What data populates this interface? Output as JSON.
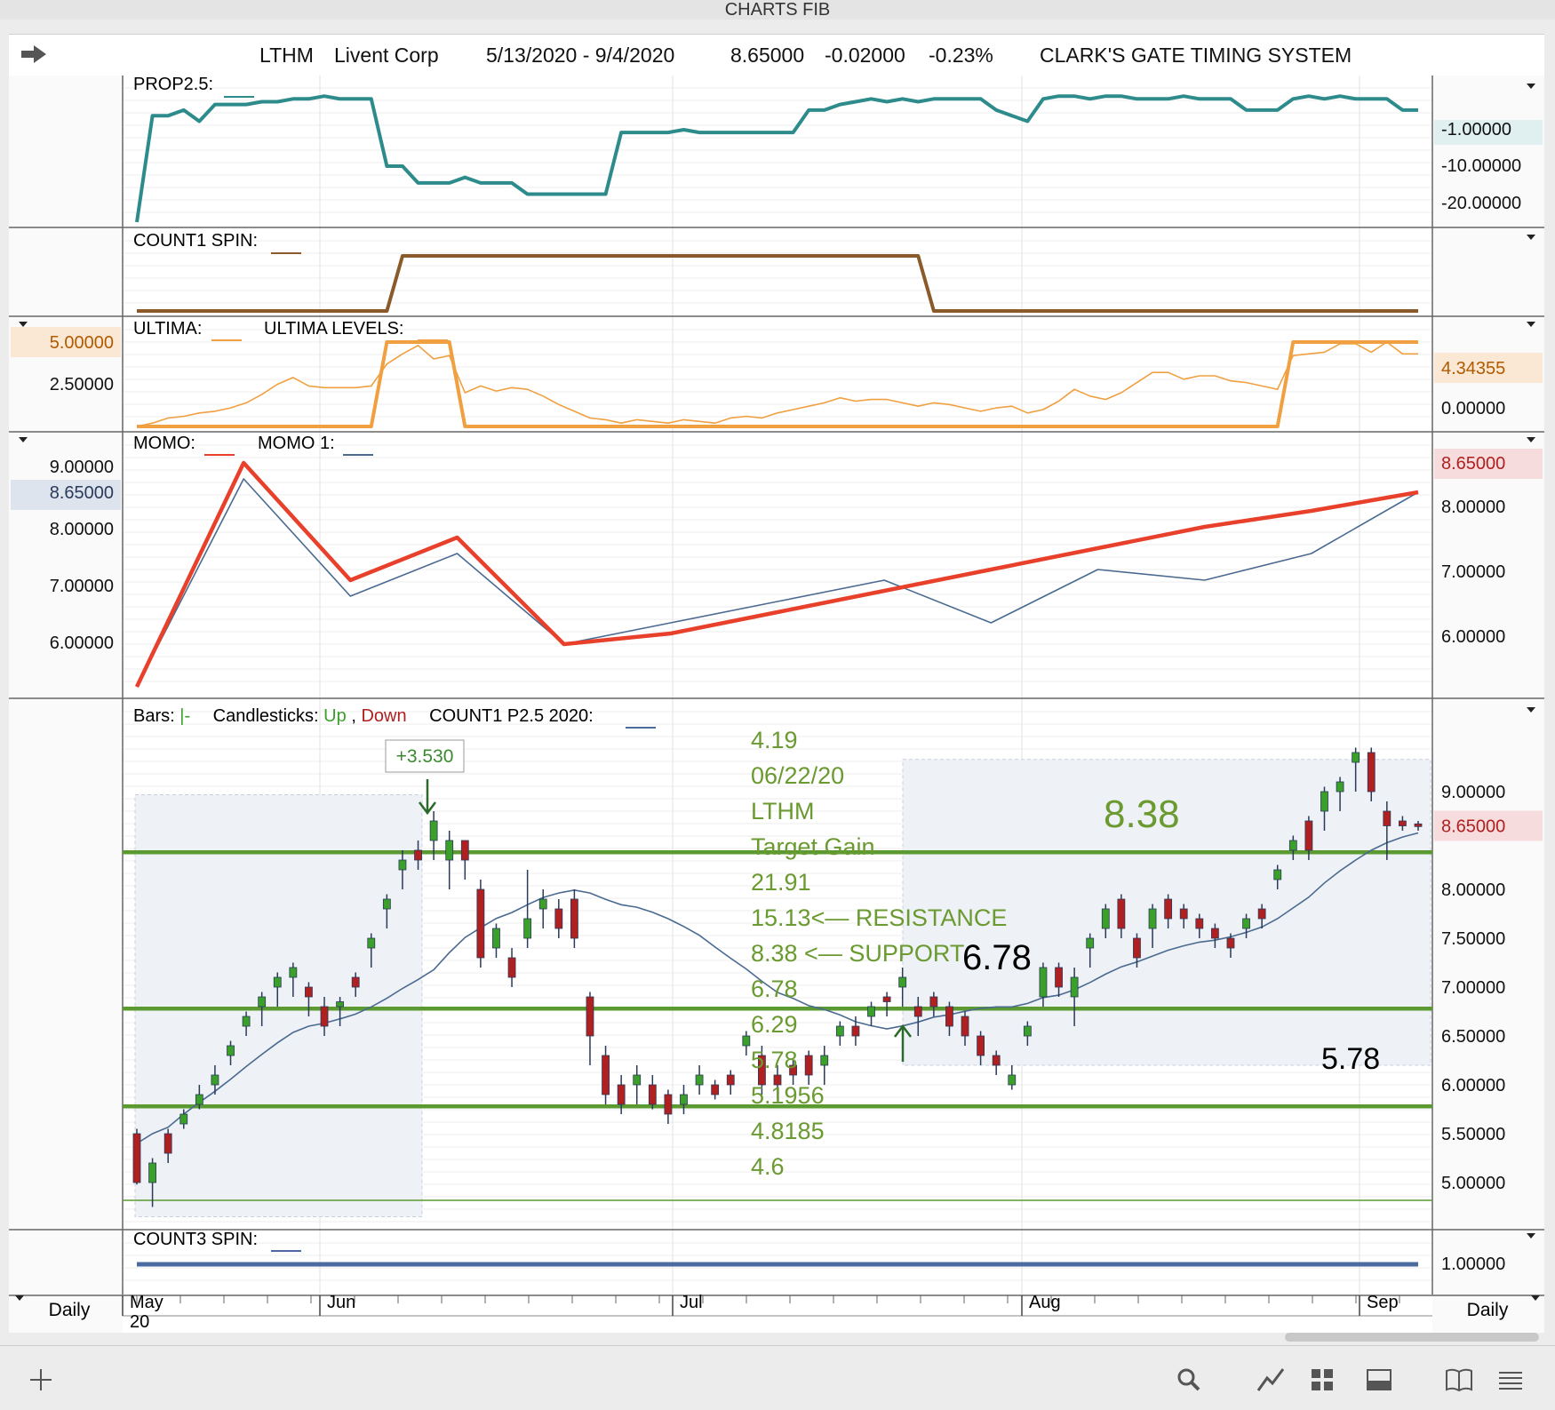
{
  "window_title": "CHARTS FIB",
  "header": {
    "symbol": "LTHM",
    "company": "Livent Corp",
    "date_range": "5/13/2020 - 9/4/2020",
    "last": "8.65000",
    "change": "-0.02000",
    "change_pct": "-0.23%",
    "system": "CLARK'S GATE TIMING SYSTEM"
  },
  "colors": {
    "prop": "#2e8b8b",
    "count1": "#8b5a2b",
    "ultima": "#f0a040",
    "momo": "#e8402a",
    "momo1": "#4a6a90",
    "up": "#3aa02a",
    "down": "#b02020",
    "level_line": "#5a9a30",
    "fib_text": "#6a9a30",
    "count3": "#4a6aa0"
  },
  "panes": {
    "prop": {
      "label": "PROP2.5:",
      "ticks": [
        "-1.00000",
        "-10.00000",
        "-20.00000"
      ],
      "current": "-1.00000"
    },
    "count1": {
      "label": "COUNT1 SPIN:"
    },
    "ultima": {
      "label": "ULTIMA:",
      "label2": "ULTIMA LEVELS:",
      "left_ticks": [
        "5.00000",
        "2.50000"
      ],
      "right_ticks": [
        "4.34355",
        "0.00000"
      ]
    },
    "momo": {
      "label": "MOMO:",
      "label2": "MOMO 1:",
      "left_ticks": [
        "9.00000",
        "8.65000",
        "8.00000",
        "7.00000",
        "6.00000"
      ],
      "right_ticks": [
        "8.65000",
        "8.00000",
        "7.00000",
        "6.00000"
      ]
    },
    "price": {
      "label_bars": "Bars:",
      "label_bars_glyph": "|-",
      "label_candles": "Candlesticks:",
      "label_up": "Up",
      "label_comma": ",",
      "label_down": "Down",
      "label_count": "COUNT1 P2.5 2020:",
      "right_ticks": [
        "9.00000",
        "8.65000",
        "8.00000",
        "7.50000",
        "7.00000",
        "6.50000",
        "6.00000",
        "5.50000",
        "5.00000"
      ],
      "gain_box": "+3.530",
      "fib_text": [
        "4.19",
        "06/22/20",
        "LTHM",
        "Target Gain",
        "21.91",
        "15.13<— RESISTANCE",
        "8.38 <— SUPPORT",
        "6.78",
        "6.29",
        "5.78",
        "5.1956",
        "4.8185",
        "4.6"
      ],
      "big_labels": [
        "8.38",
        "6.78",
        "5.78"
      ]
    },
    "count3": {
      "label": "COUNT3 SPIN:",
      "current": "1.00000"
    }
  },
  "x_axis": {
    "months": [
      "May",
      "Jun",
      "Jul",
      "Aug",
      "Sep"
    ],
    "year": "20",
    "period_left": "Daily",
    "period_right": "Daily"
  },
  "chart_data": [
    {
      "type": "line",
      "title": "PROP2.5",
      "series": [
        {
          "name": "PROP2.5",
          "values": [
            -22,
            -3,
            -3,
            -2,
            -4,
            -1,
            -1,
            -1,
            -0.5,
            -0.5,
            0,
            0,
            0.5,
            0,
            0,
            0,
            -12,
            -12,
            -15,
            -15,
            -15,
            -14,
            -15,
            -15,
            -15,
            -17,
            -17,
            -17,
            -17,
            -17,
            -17,
            -6,
            -6,
            -6,
            -6,
            -5.5,
            -6,
            -6,
            -6,
            -6,
            -6,
            -6,
            -6,
            -2,
            -2,
            -1,
            -0.5,
            0,
            -0.5,
            0,
            -0.5,
            0,
            0,
            0,
            0,
            -2,
            -3,
            -4,
            0,
            0.5,
            0.5,
            0,
            0.5,
            0.5,
            0,
            0,
            0,
            0.5,
            0,
            0,
            0,
            -2,
            -2,
            -2,
            0,
            0.5,
            0,
            0.5,
            0,
            0,
            0,
            -2,
            -2
          ]
        }
      ],
      "ylim": [
        -22,
        1
      ]
    },
    {
      "type": "line",
      "title": "COUNT1 SPIN",
      "series": [
        {
          "name": "COUNT1 SPIN",
          "values": [
            0,
            0,
            0,
            0,
            0,
            0,
            0,
            0,
            0,
            0,
            0,
            0,
            0,
            0,
            0,
            0,
            0,
            1,
            1,
            1,
            1,
            1,
            1,
            1,
            1,
            1,
            1,
            1,
            1,
            1,
            1,
            1,
            1,
            1,
            1,
            1,
            1,
            1,
            1,
            1,
            1,
            1,
            1,
            1,
            1,
            1,
            1,
            1,
            1,
            1,
            1,
            0,
            0,
            0,
            0,
            0,
            0,
            0,
            0,
            0,
            0,
            0,
            0,
            0,
            0,
            0,
            0,
            0,
            0,
            0,
            0,
            0,
            0,
            0,
            0,
            0,
            0,
            0,
            0,
            0,
            0,
            0,
            0
          ]
        }
      ],
      "ylim": [
        0,
        1
      ]
    },
    {
      "type": "line",
      "title": "ULTIMA",
      "series": [
        {
          "name": "ULTIMA",
          "values": [
            0,
            0.2,
            0.5,
            0.6,
            0.8,
            0.9,
            1.1,
            1.4,
            1.9,
            2.5,
            2.9,
            2.4,
            2.3,
            2.3,
            2.3,
            2.4,
            3.7,
            4.3,
            4.8,
            4.0,
            4.2,
            2.0,
            2.4,
            2.1,
            2.3,
            2.2,
            1.8,
            1.3,
            0.9,
            0.5,
            0.4,
            0.2,
            0.4,
            0.3,
            0.2,
            0.4,
            0.3,
            0.2,
            0.5,
            0.6,
            0.5,
            0.8,
            1.0,
            1.2,
            1.4,
            1.7,
            1.5,
            1.6,
            1.6,
            1.4,
            1.2,
            1.4,
            1.3,
            1.1,
            0.9,
            1.1,
            1.2,
            0.8,
            1.0,
            1.5,
            2.2,
            1.8,
            1.6,
            2.0,
            2.6,
            3.2,
            3.2,
            2.8,
            3.0,
            3.0,
            2.7,
            2.6,
            2.4,
            2.2,
            4.2,
            4.3,
            4.4,
            4.9,
            4.9,
            4.4,
            5.0,
            4.3,
            4.3
          ]
        },
        {
          "name": "ULTIMA LEVELS",
          "values": [
            0,
            0,
            0,
            0,
            0,
            0,
            0,
            0,
            0,
            0,
            0,
            0,
            0,
            0,
            0,
            0,
            5,
            5,
            5,
            5,
            5,
            0,
            0,
            0,
            0,
            0,
            0,
            0,
            0,
            0,
            0,
            0,
            0,
            0,
            0,
            0,
            0,
            0,
            0,
            0,
            0,
            0,
            0,
            0,
            0,
            0,
            0,
            0,
            0,
            0,
            0,
            0,
            0,
            0,
            0,
            0,
            0,
            0,
            0,
            0,
            0,
            0,
            0,
            0,
            0,
            0,
            0,
            0,
            0,
            0,
            0,
            0,
            0,
            0,
            5,
            5,
            5,
            5,
            5,
            5,
            5,
            5,
            5
          ]
        }
      ],
      "ylim": [
        0,
        5
      ]
    },
    {
      "type": "line",
      "title": "MOMO",
      "series": [
        {
          "name": "MOMO",
          "values": [
            5.0,
            9.2,
            7.0,
            7.8,
            5.8,
            6.0,
            6.4,
            6.8,
            7.2,
            7.6,
            8.0,
            8.3,
            8.65
          ]
        },
        {
          "name": "MOMO 1",
          "values": [
            5.0,
            8.9,
            6.7,
            7.5,
            5.8,
            6.2,
            6.6,
            7.0,
            6.2,
            7.2,
            7.0,
            7.5,
            8.65
          ]
        }
      ],
      "ylim": [
        4.8,
        9.3
      ]
    },
    {
      "type": "bar",
      "title": "LTHM Daily",
      "ylim": [
        4.6,
        9.6
      ],
      "support_resistance": [
        8.38,
        6.78,
        5.78,
        4.8185
      ],
      "candles": [
        [
          5.5,
          5.0,
          5.55,
          4.98
        ],
        [
          5.0,
          5.2,
          5.25,
          4.75
        ],
        [
          5.5,
          5.3,
          5.55,
          5.2
        ],
        [
          5.6,
          5.7,
          5.75,
          5.55
        ],
        [
          5.8,
          5.9,
          6.0,
          5.75
        ],
        [
          6.0,
          6.1,
          6.2,
          5.9
        ],
        [
          6.3,
          6.4,
          6.45,
          6.2
        ],
        [
          6.6,
          6.7,
          6.75,
          6.5
        ],
        [
          6.8,
          6.9,
          6.95,
          6.6
        ],
        [
          7.0,
          7.1,
          7.15,
          6.8
        ],
        [
          7.1,
          7.2,
          7.25,
          6.9
        ],
        [
          7.0,
          6.9,
          7.05,
          6.7
        ],
        [
          6.8,
          6.6,
          6.9,
          6.5
        ],
        [
          6.8,
          6.85,
          6.9,
          6.6
        ],
        [
          7.1,
          7.0,
          7.15,
          6.9
        ],
        [
          7.4,
          7.5,
          7.55,
          7.2
        ],
        [
          7.8,
          7.9,
          7.95,
          7.6
        ],
        [
          8.2,
          8.3,
          8.4,
          8.0
        ],
        [
          8.4,
          8.3,
          8.5,
          8.2
        ],
        [
          8.5,
          8.7,
          8.8,
          8.3
        ],
        [
          8.3,
          8.5,
          8.6,
          8.0
        ],
        [
          8.5,
          8.3,
          8.5,
          8.1
        ],
        [
          8.0,
          7.3,
          8.1,
          7.2
        ],
        [
          7.4,
          7.6,
          7.65,
          7.3
        ],
        [
          7.3,
          7.1,
          7.4,
          7.0
        ],
        [
          7.5,
          7.7,
          8.2,
          7.4
        ],
        [
          7.8,
          7.9,
          8.0,
          7.6
        ],
        [
          7.8,
          7.6,
          7.9,
          7.5
        ],
        [
          7.9,
          7.5,
          8.0,
          7.4
        ],
        [
          6.9,
          6.5,
          6.95,
          6.2
        ],
        [
          6.3,
          5.9,
          6.4,
          5.8
        ],
        [
          6.0,
          5.8,
          6.1,
          5.7
        ],
        [
          6.0,
          6.1,
          6.2,
          5.8
        ],
        [
          6.0,
          5.8,
          6.1,
          5.75
        ],
        [
          5.9,
          5.7,
          5.95,
          5.6
        ],
        [
          5.8,
          5.9,
          6.0,
          5.7
        ],
        [
          6.0,
          6.1,
          6.2,
          5.9
        ],
        [
          6.0,
          5.9,
          6.05,
          5.85
        ],
        [
          6.1,
          6.0,
          6.15,
          5.9
        ],
        [
          6.4,
          6.5,
          6.55,
          6.3
        ],
        [
          6.3,
          6.0,
          6.4,
          5.9
        ],
        [
          6.1,
          6.0,
          6.2,
          5.85
        ],
        [
          6.2,
          6.1,
          6.25,
          6.0
        ],
        [
          6.3,
          6.1,
          6.35,
          6.0
        ],
        [
          6.2,
          6.3,
          6.4,
          6.0
        ],
        [
          6.5,
          6.6,
          6.65,
          6.4
        ],
        [
          6.6,
          6.5,
          6.7,
          6.4
        ],
        [
          6.7,
          6.8,
          6.85,
          6.6
        ],
        [
          6.9,
          6.85,
          6.95,
          6.7
        ],
        [
          7.0,
          7.1,
          7.2,
          6.8
        ],
        [
          6.8,
          6.7,
          6.9,
          6.5
        ],
        [
          6.9,
          6.8,
          6.95,
          6.7
        ],
        [
          6.8,
          6.6,
          6.85,
          6.5
        ],
        [
          6.7,
          6.5,
          6.75,
          6.4
        ],
        [
          6.5,
          6.3,
          6.55,
          6.2
        ],
        [
          6.3,
          6.2,
          6.35,
          6.1
        ],
        [
          6.0,
          6.1,
          6.2,
          5.95
        ],
        [
          6.5,
          6.6,
          6.65,
          6.4
        ],
        [
          6.9,
          7.2,
          7.25,
          6.8
        ],
        [
          7.2,
          7.0,
          7.25,
          6.9
        ],
        [
          6.9,
          7.1,
          7.2,
          6.6
        ],
        [
          7.4,
          7.5,
          7.55,
          7.2
        ],
        [
          7.6,
          7.8,
          7.85,
          7.5
        ],
        [
          7.9,
          7.6,
          7.95,
          7.5
        ],
        [
          7.5,
          7.3,
          7.55,
          7.2
        ],
        [
          7.6,
          7.8,
          7.85,
          7.4
        ],
        [
          7.9,
          7.7,
          7.95,
          7.6
        ],
        [
          7.8,
          7.7,
          7.85,
          7.6
        ],
        [
          7.7,
          7.6,
          7.75,
          7.5
        ],
        [
          7.6,
          7.5,
          7.65,
          7.4
        ],
        [
          7.5,
          7.4,
          7.55,
          7.3
        ],
        [
          7.6,
          7.7,
          7.75,
          7.5
        ],
        [
          7.8,
          7.7,
          7.85,
          7.6
        ],
        [
          8.1,
          8.2,
          8.25,
          8.0
        ],
        [
          8.4,
          8.5,
          8.55,
          8.3
        ],
        [
          8.7,
          8.4,
          8.75,
          8.3
        ],
        [
          8.8,
          9.0,
          9.05,
          8.6
        ],
        [
          9.0,
          9.1,
          9.15,
          8.8
        ],
        [
          9.3,
          9.4,
          9.45,
          9.0
        ],
        [
          9.4,
          9.0,
          9.45,
          8.9
        ],
        [
          8.8,
          8.65,
          8.9,
          8.3
        ],
        [
          8.7,
          8.65,
          8.75,
          8.6
        ],
        [
          8.67,
          8.65,
          8.7,
          8.6
        ]
      ]
    },
    {
      "type": "line",
      "title": "COUNT3 SPIN",
      "series": [
        {
          "name": "COUNT3 SPIN",
          "values": [
            1,
            1
          ]
        }
      ],
      "ylim": [
        0,
        2
      ]
    }
  ]
}
